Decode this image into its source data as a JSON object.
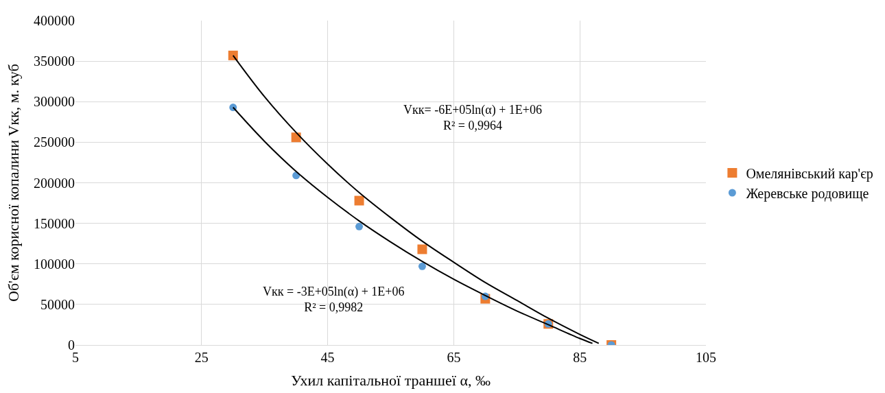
{
  "chart_data": {
    "type": "scatter",
    "xlabel": "Ухил капітальної траншеї α, ‰",
    "ylabel": "Об'єм корисної копалини Vкк, м. куб",
    "x": [
      30,
      40,
      50,
      60,
      70,
      80,
      90
    ],
    "series": [
      {
        "name": "Омелянівський кар'єр",
        "color": "#ed7d31",
        "marker": "square",
        "values": [
          357000,
          256000,
          178000,
          118000,
          57000,
          26000,
          0
        ]
      },
      {
        "name": "Жеревське родовище",
        "color": "#5b9bd5",
        "marker": "circle",
        "values": [
          293000,
          209000,
          146000,
          97000,
          60000,
          26000,
          0
        ]
      },
      {
        "type": "line",
        "color": "#000000",
        "x": [
          30,
          35,
          40,
          45,
          50,
          55,
          60,
          65,
          70,
          75,
          80,
          85,
          88
        ],
        "values": [
          357000,
          306000,
          262000,
          223000,
          188000,
          157000,
          128000,
          102000,
          77000,
          55000,
          33000,
          13000,
          2000
        ]
      },
      {
        "type": "line",
        "color": "#000000",
        "x": [
          30,
          35,
          40,
          45,
          50,
          55,
          60,
          65,
          70,
          75,
          80,
          85,
          87
        ],
        "values": [
          293000,
          251000,
          214000,
          182000,
          153000,
          127000,
          103000,
          81000,
          61000,
          42000,
          25000,
          8000,
          2000
        ]
      }
    ],
    "annotations": [
      "Vкк= -6E+05ln(α) + 1E+06\nR² = 0,9964",
      "Vкк = -3E+05ln(α) + 1E+06\nR² = 0,9982"
    ],
    "xlim": [
      5,
      105
    ],
    "xticks": [
      5,
      25,
      45,
      65,
      85,
      105
    ],
    "ylim": [
      0,
      400000
    ],
    "yticks": [
      0,
      50000,
      100000,
      150000,
      200000,
      250000,
      300000,
      350000,
      400000
    ],
    "grid": true,
    "legend": "right"
  }
}
